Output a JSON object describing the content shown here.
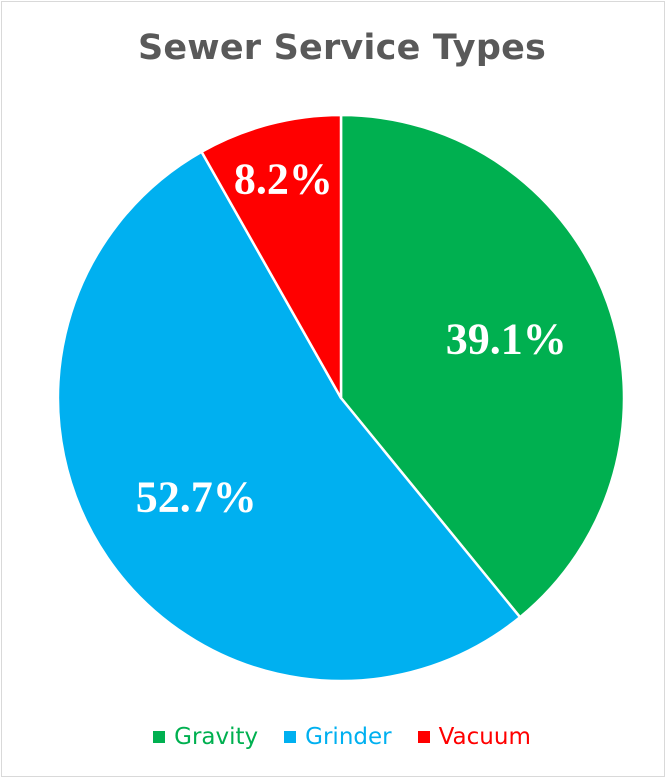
{
  "chart_data": {
    "type": "pie",
    "title": "Sewer Service Types",
    "categories": [
      "Gravity",
      "Grinder",
      "Vacuum"
    ],
    "values": [
      39.1,
      52.7,
      8.2
    ],
    "data_labels": [
      "39.1%",
      "52.7%",
      "8.2%"
    ],
    "colors": [
      "#00b050",
      "#00b0f0",
      "#ff0000"
    ],
    "legend_position": "bottom",
    "start_angle": "12 o'clock, clockwise"
  }
}
